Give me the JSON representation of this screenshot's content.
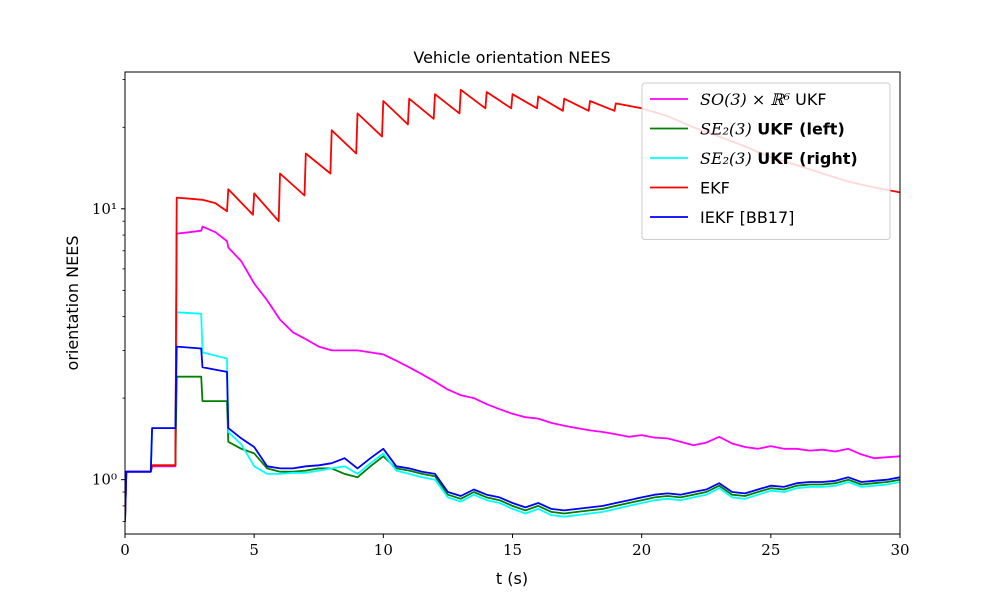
{
  "chart_data": {
    "type": "line",
    "title": "Vehicle orientation NEES",
    "xlabel": "t (s)",
    "ylabel": "orientation NEES",
    "xlim": [
      0,
      30
    ],
    "ylim": [
      0.63,
      32
    ],
    "yscale": "log",
    "xticks": [
      0,
      5,
      10,
      15,
      20,
      25,
      30
    ],
    "yticks": [
      {
        "value": 1,
        "label": "10⁰"
      },
      {
        "value": 10,
        "label": "10¹"
      }
    ],
    "grid": false,
    "legend_position": "top-right",
    "series": [
      {
        "name": "SO(3) × ℝ⁶ UKF",
        "color": "#ff00ff",
        "x": [
          0,
          0.05,
          1,
          1.05,
          1.95,
          2,
          2.5,
          2.95,
          3,
          3.5,
          3.95,
          4,
          4.5,
          5,
          5.5,
          6,
          6.5,
          7,
          7.5,
          8,
          8.5,
          9,
          9.5,
          10,
          10.5,
          11,
          11.5,
          12,
          12.5,
          13,
          13.5,
          14,
          14.5,
          15,
          15.5,
          16,
          16.5,
          17,
          17.5,
          18,
          18.5,
          19,
          19.5,
          20,
          20.5,
          21,
          21.5,
          22,
          22.5,
          23,
          23.5,
          24,
          24.5,
          25,
          25.5,
          26,
          26.5,
          27,
          27.5,
          28,
          28.5,
          29,
          29.5,
          30
        ],
        "y": [
          0.7,
          1.07,
          1.07,
          1.12,
          1.12,
          8.1,
          8.2,
          8.3,
          8.6,
          8.2,
          7.6,
          7.2,
          6.4,
          5.3,
          4.6,
          3.9,
          3.5,
          3.3,
          3.1,
          3.0,
          3.0,
          3.0,
          2.95,
          2.9,
          2.75,
          2.6,
          2.45,
          2.3,
          2.15,
          2.05,
          2.0,
          1.9,
          1.82,
          1.75,
          1.7,
          1.68,
          1.62,
          1.58,
          1.55,
          1.52,
          1.5,
          1.47,
          1.44,
          1.46,
          1.43,
          1.42,
          1.38,
          1.34,
          1.37,
          1.44,
          1.36,
          1.32,
          1.3,
          1.33,
          1.3,
          1.3,
          1.28,
          1.29,
          1.27,
          1.3,
          1.24,
          1.2,
          1.21,
          1.22
        ]
      },
      {
        "name": "SE₂(3) UKF (left)",
        "color": "#008000",
        "x": [
          0,
          0.05,
          1,
          1.05,
          1.95,
          2,
          2.95,
          3,
          3.95,
          4,
          4.5,
          5,
          5.5,
          6,
          6.5,
          7,
          7.5,
          8,
          8.5,
          9,
          9.5,
          10,
          10.5,
          11,
          11.5,
          12,
          12.5,
          13,
          13.5,
          14,
          14.5,
          15,
          15.5,
          16,
          16.5,
          17,
          17.5,
          18,
          18.5,
          19,
          19.5,
          20,
          20.5,
          21,
          21.5,
          22,
          22.5,
          23,
          23.5,
          24,
          24.5,
          25,
          25.5,
          26,
          26.5,
          27,
          27.5,
          28,
          28.5,
          29,
          29.5,
          30
        ],
        "y": [
          0.7,
          1.07,
          1.07,
          1.13,
          1.13,
          2.4,
          2.4,
          1.95,
          1.95,
          1.38,
          1.3,
          1.25,
          1.1,
          1.07,
          1.07,
          1.08,
          1.1,
          1.1,
          1.05,
          1.02,
          1.12,
          1.22,
          1.1,
          1.08,
          1.05,
          1.03,
          0.88,
          0.85,
          0.9,
          0.86,
          0.84,
          0.8,
          0.77,
          0.8,
          0.76,
          0.75,
          0.76,
          0.77,
          0.78,
          0.8,
          0.82,
          0.84,
          0.86,
          0.87,
          0.86,
          0.88,
          0.9,
          0.95,
          0.88,
          0.87,
          0.9,
          0.93,
          0.92,
          0.95,
          0.96,
          0.96,
          0.97,
          1.0,
          0.96,
          0.97,
          0.98,
          1.0
        ]
      },
      {
        "name": "SE₂(3) UKF (right)",
        "color": "#00ffff",
        "x": [
          0,
          0.05,
          1,
          1.05,
          1.95,
          2,
          2.95,
          3,
          3.95,
          4,
          4.5,
          5,
          5.5,
          6,
          6.5,
          7,
          7.5,
          8,
          8.5,
          9,
          9.5,
          10,
          10.5,
          11,
          11.5,
          12,
          12.5,
          13,
          13.5,
          14,
          14.5,
          15,
          15.5,
          16,
          16.5,
          17,
          17.5,
          18,
          18.5,
          19,
          19.5,
          20,
          20.5,
          21,
          21.5,
          22,
          22.5,
          23,
          23.5,
          24,
          24.5,
          25,
          25.5,
          26,
          26.5,
          27,
          27.5,
          28,
          28.5,
          29,
          29.5,
          30
        ],
        "y": [
          0.7,
          1.07,
          1.07,
          1.55,
          1.55,
          4.15,
          4.1,
          2.95,
          2.8,
          1.5,
          1.35,
          1.12,
          1.05,
          1.05,
          1.06,
          1.06,
          1.08,
          1.1,
          1.12,
          1.05,
          1.15,
          1.25,
          1.08,
          1.05,
          1.02,
          1.0,
          0.86,
          0.83,
          0.88,
          0.84,
          0.82,
          0.78,
          0.75,
          0.78,
          0.74,
          0.73,
          0.74,
          0.75,
          0.76,
          0.78,
          0.8,
          0.82,
          0.84,
          0.85,
          0.84,
          0.86,
          0.88,
          0.93,
          0.86,
          0.85,
          0.88,
          0.91,
          0.9,
          0.93,
          0.94,
          0.94,
          0.95,
          0.98,
          0.94,
          0.95,
          0.96,
          0.98
        ]
      },
      {
        "name": "EKF",
        "color": "#ff0000",
        "x": [
          0,
          0.05,
          1,
          1.05,
          1.95,
          2,
          2.5,
          3,
          3.5,
          3.95,
          4,
          4.95,
          5,
          5.95,
          6,
          6.95,
          7,
          7.95,
          8,
          8.95,
          9,
          9.95,
          10,
          10.95,
          11,
          11.95,
          12,
          12.95,
          13,
          13.95,
          14,
          14.95,
          15,
          15.95,
          16,
          16.95,
          17,
          17.95,
          18,
          18.95,
          19,
          20,
          21,
          22,
          23,
          24,
          25,
          26,
          27,
          28,
          29,
          30
        ],
        "y": [
          0.7,
          1.07,
          1.07,
          1.13,
          1.13,
          11.0,
          10.9,
          10.8,
          10.5,
          9.8,
          11.8,
          9.5,
          11.4,
          9.0,
          13.5,
          11.2,
          16.0,
          13.5,
          19.5,
          16.0,
          22.5,
          18.5,
          25.0,
          20.5,
          25.5,
          21.5,
          26.5,
          22.5,
          27.5,
          23.5,
          27.0,
          23.5,
          26.5,
          23.5,
          26.0,
          23.0,
          25.5,
          23.0,
          25.0,
          23.0,
          24.5,
          23.5,
          22.0,
          20.0,
          18.5,
          17.0,
          15.5,
          14.5,
          13.5,
          12.6,
          12.0,
          11.5
        ]
      },
      {
        "name": "IEKF [BB17]",
        "color": "#0000ff",
        "x": [
          0,
          0.05,
          1,
          1.05,
          1.95,
          2,
          2.95,
          3,
          3.95,
          4,
          4.5,
          5,
          5.5,
          6,
          6.5,
          7,
          7.5,
          8,
          8.5,
          9,
          9.5,
          10,
          10.5,
          11,
          11.5,
          12,
          12.5,
          13,
          13.5,
          14,
          14.5,
          15,
          15.5,
          16,
          16.5,
          17,
          17.5,
          18,
          18.5,
          19,
          19.5,
          20,
          20.5,
          21,
          21.5,
          22,
          22.5,
          23,
          23.5,
          24,
          24.5,
          25,
          25.5,
          26,
          26.5,
          27,
          27.5,
          28,
          28.5,
          29,
          29.5,
          30
        ],
        "y": [
          0.7,
          1.07,
          1.07,
          1.55,
          1.55,
          3.1,
          3.05,
          2.6,
          2.5,
          1.55,
          1.42,
          1.32,
          1.12,
          1.1,
          1.1,
          1.12,
          1.13,
          1.15,
          1.2,
          1.1,
          1.2,
          1.3,
          1.12,
          1.1,
          1.07,
          1.05,
          0.9,
          0.87,
          0.92,
          0.88,
          0.86,
          0.82,
          0.79,
          0.82,
          0.78,
          0.77,
          0.78,
          0.79,
          0.8,
          0.82,
          0.84,
          0.86,
          0.88,
          0.89,
          0.88,
          0.9,
          0.92,
          0.97,
          0.9,
          0.89,
          0.92,
          0.95,
          0.94,
          0.97,
          0.98,
          0.98,
          0.99,
          1.02,
          0.98,
          0.99,
          1.0,
          1.02
        ]
      }
    ],
    "legend": [
      {
        "math": "SO(3) × ℝ⁶",
        "rest": " UKF",
        "bold": false,
        "color": "#ff00ff"
      },
      {
        "math": "SE₂(3)",
        "rest": " UKF (left)",
        "bold": true,
        "color": "#008000"
      },
      {
        "math": "SE₂(3)",
        "rest": " UKF (right)",
        "bold": true,
        "color": "#00ffff"
      },
      {
        "math": "",
        "rest": "EKF",
        "bold": false,
        "color": "#ff0000"
      },
      {
        "math": "",
        "rest": "IEKF [BB17]",
        "bold": false,
        "color": "#0000ff"
      }
    ]
  }
}
